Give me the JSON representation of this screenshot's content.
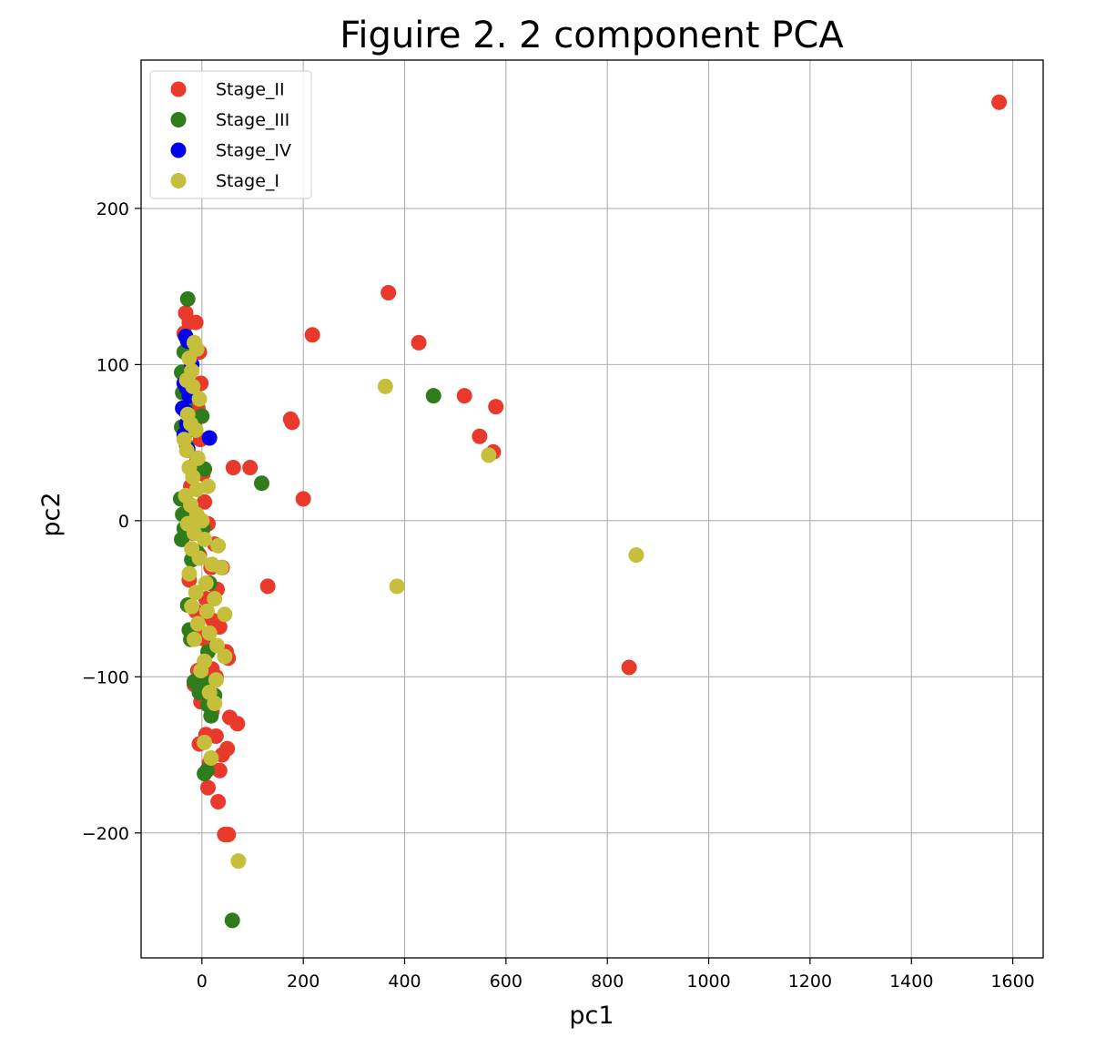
{
  "chart_data": {
    "type": "scatter",
    "title": "Figuire 2. 2 component PCA",
    "xlabel": "pc1",
    "ylabel": "pc2",
    "xlim": [
      -120,
      1660
    ],
    "ylim": [
      -280,
      295
    ],
    "xticks": [
      0,
      200,
      400,
      600,
      800,
      1000,
      1200,
      1400,
      1600
    ],
    "yticks": [
      -200,
      -100,
      0,
      100,
      200
    ],
    "xtick_labels": [
      "0",
      "200",
      "400",
      "600",
      "800",
      "1000",
      "1200",
      "1400",
      "1600"
    ],
    "ytick_labels": [
      "−200",
      "−100",
      "0",
      "100",
      "200"
    ],
    "grid": true,
    "legend_position": "top-left",
    "series": [
      {
        "name": "Stage_II",
        "color": "#e8392b",
        "points": [
          [
            1573,
            268
          ],
          [
            368,
            146
          ],
          [
            428,
            114
          ],
          [
            218,
            119
          ],
          [
            175,
            65
          ],
          [
            178,
            63
          ],
          [
            518,
            80
          ],
          [
            580,
            73
          ],
          [
            548,
            54
          ],
          [
            575,
            44
          ],
          [
            62,
            34
          ],
          [
            95,
            34
          ],
          [
            200,
            14
          ],
          [
            130,
            -42
          ],
          [
            843,
            -94
          ],
          [
            -32,
            133
          ],
          [
            -25,
            127
          ],
          [
            -12,
            127
          ],
          [
            -35,
            120
          ],
          [
            -5,
            108
          ],
          [
            -2,
            88
          ],
          [
            -20,
            80
          ],
          [
            -8,
            72
          ],
          [
            -15,
            62
          ],
          [
            -3,
            52
          ],
          [
            -28,
            45
          ],
          [
            -10,
            38
          ],
          [
            2,
            30
          ],
          [
            -22,
            22
          ],
          [
            5,
            12
          ],
          [
            -30,
            5
          ],
          [
            12,
            -2
          ],
          [
            -18,
            -8
          ],
          [
            25,
            -15
          ],
          [
            -5,
            -22
          ],
          [
            18,
            -30
          ],
          [
            -25,
            -38
          ],
          [
            30,
            -44
          ],
          [
            8,
            -50
          ],
          [
            -12,
            -58
          ],
          [
            22,
            -64
          ],
          [
            35,
            -68
          ],
          [
            -3,
            -75
          ],
          [
            15,
            -80
          ],
          [
            48,
            -84
          ],
          [
            52,
            -88
          ],
          [
            -8,
            -96
          ],
          [
            28,
            -100
          ],
          [
            10,
            -108
          ],
          [
            -2,
            -116
          ],
          [
            20,
            -122
          ],
          [
            55,
            -126
          ],
          [
            70,
            -130
          ],
          [
            8,
            -137
          ],
          [
            28,
            -138
          ],
          [
            -5,
            -143
          ],
          [
            50,
            -146
          ],
          [
            40,
            -150
          ],
          [
            15,
            -155
          ],
          [
            35,
            -160
          ],
          [
            12,
            -171
          ],
          [
            32,
            -180
          ],
          [
            45,
            -201
          ],
          [
            52,
            -201
          ],
          [
            20,
            -95
          ],
          [
            -15,
            -105
          ],
          [
            5,
            -60
          ],
          [
            40,
            -30
          ]
        ]
      },
      {
        "name": "Stage_III",
        "color": "#2f7c1c",
        "points": [
          [
            -28,
            142
          ],
          [
            -35,
            108
          ],
          [
            -40,
            95
          ],
          [
            -38,
            82
          ],
          [
            -32,
            72
          ],
          [
            0,
            67
          ],
          [
            -40,
            60
          ],
          [
            -25,
            58
          ],
          [
            -30,
            48
          ],
          [
            5,
            33
          ],
          [
            -42,
            14
          ],
          [
            -38,
            4
          ],
          [
            -35,
            -5
          ],
          [
            -40,
            -12
          ],
          [
            -20,
            -25
          ],
          [
            15,
            -40
          ],
          [
            -28,
            -54
          ],
          [
            -25,
            -70
          ],
          [
            -22,
            -76
          ],
          [
            12,
            -84
          ],
          [
            -15,
            -103
          ],
          [
            8,
            -104
          ],
          [
            -5,
            -110
          ],
          [
            25,
            -112
          ],
          [
            12,
            -118
          ],
          [
            18,
            -125
          ],
          [
            5,
            -162
          ],
          [
            10,
            -160
          ],
          [
            118,
            24
          ],
          [
            457,
            80
          ],
          [
            60,
            -256
          ],
          [
            -10,
            -20
          ],
          [
            2,
            -5
          ]
        ]
      },
      {
        "name": "Stage_IV",
        "color": "#0000ee",
        "points": [
          [
            -32,
            118
          ],
          [
            -28,
            115
          ],
          [
            -35,
            88
          ],
          [
            -30,
            85
          ],
          [
            -25,
            80
          ],
          [
            -38,
            72
          ],
          [
            -32,
            70
          ],
          [
            -30,
            62
          ],
          [
            -35,
            55
          ],
          [
            -28,
            46
          ],
          [
            15,
            53
          ],
          [
            -20,
            100
          ]
        ]
      },
      {
        "name": "Stage_I",
        "color": "#c6bf3b",
        "points": [
          [
            -15,
            114
          ],
          [
            -10,
            110
          ],
          [
            -25,
            104
          ],
          [
            -20,
            96
          ],
          [
            -30,
            90
          ],
          [
            -18,
            86
          ],
          [
            -5,
            78
          ],
          [
            -28,
            68
          ],
          [
            -22,
            62
          ],
          [
            -12,
            58
          ],
          [
            -35,
            52
          ],
          [
            -30,
            45
          ],
          [
            -8,
            40
          ],
          [
            -25,
            34
          ],
          [
            -18,
            28
          ],
          [
            12,
            22
          ],
          [
            -32,
            16
          ],
          [
            -22,
            10
          ],
          [
            -10,
            4
          ],
          [
            -28,
            -2
          ],
          [
            -15,
            -8
          ],
          [
            5,
            -12
          ],
          [
            -20,
            -18
          ],
          [
            32,
            -16
          ],
          [
            -5,
            -24
          ],
          [
            20,
            -28
          ],
          [
            38,
            -30
          ],
          [
            -25,
            -34
          ],
          [
            8,
            -40
          ],
          [
            -12,
            -46
          ],
          [
            25,
            -50
          ],
          [
            -20,
            -55
          ],
          [
            10,
            -58
          ],
          [
            45,
            -60
          ],
          [
            -8,
            -66
          ],
          [
            15,
            -72
          ],
          [
            -15,
            -76
          ],
          [
            30,
            -80
          ],
          [
            45,
            -87
          ],
          [
            5,
            -90
          ],
          [
            -2,
            -96
          ],
          [
            28,
            -102
          ],
          [
            15,
            -110
          ],
          [
            25,
            -117
          ],
          [
            5,
            -142
          ],
          [
            18,
            -152
          ],
          [
            72,
            -218
          ],
          [
            362,
            86
          ],
          [
            385,
            -42
          ],
          [
            566,
            42
          ],
          [
            857,
            -22
          ],
          [
            0,
            0
          ],
          [
            -10,
            20
          ]
        ]
      }
    ]
  }
}
